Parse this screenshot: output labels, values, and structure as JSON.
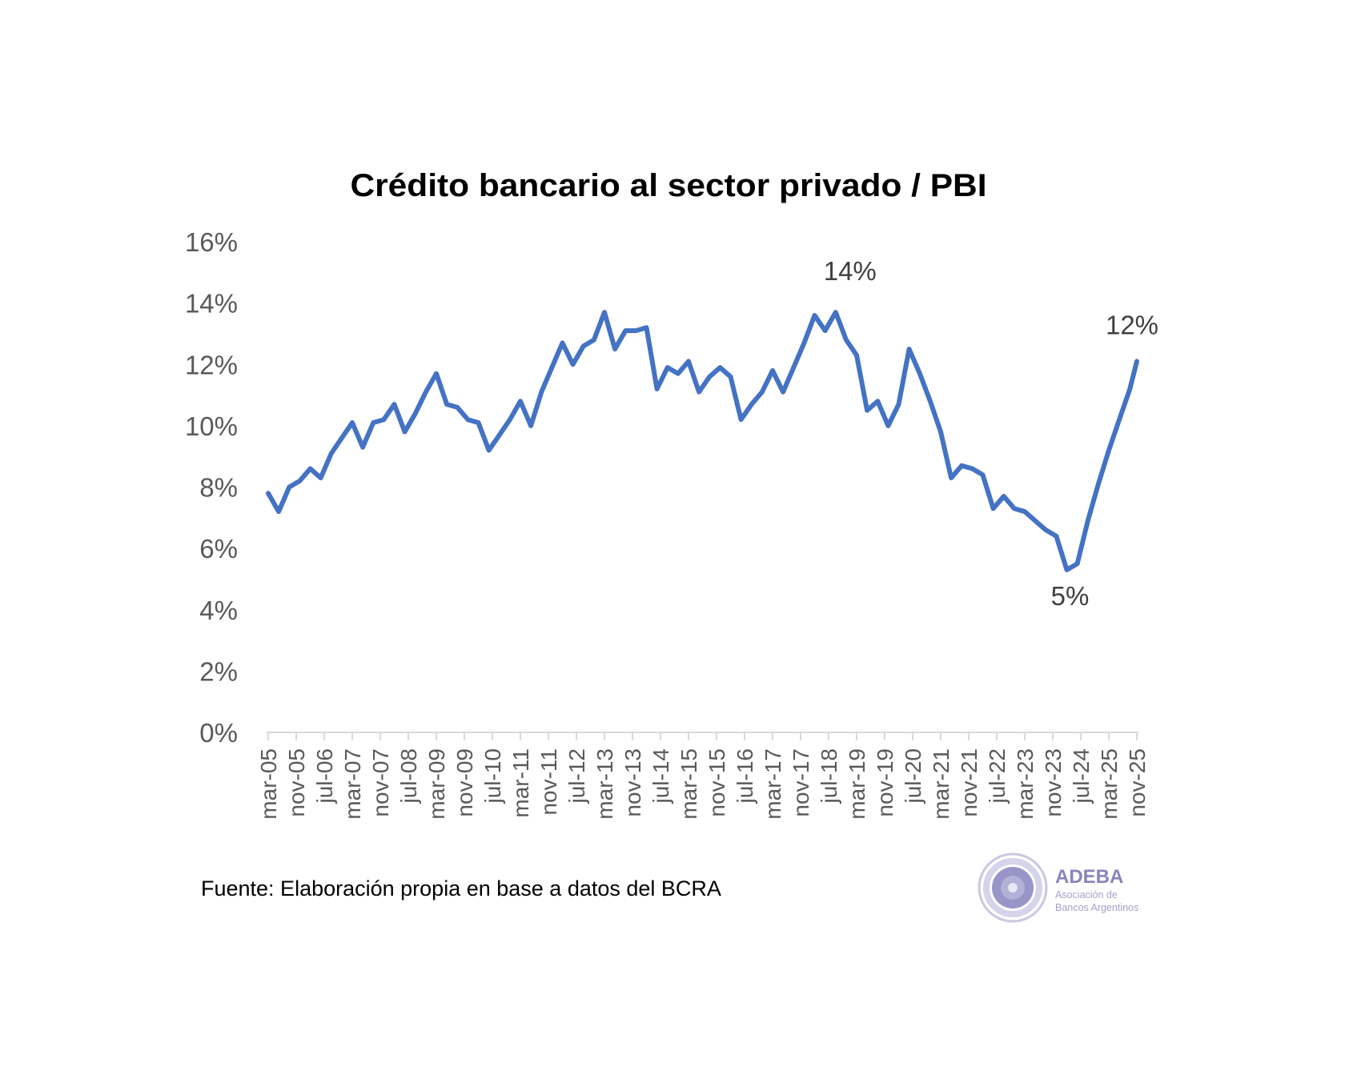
{
  "chart_data": {
    "type": "line",
    "title": "Crédito bancario al sector privado / PBI",
    "xlabel": "",
    "ylabel": "",
    "ylim": [
      0,
      16
    ],
    "y_ticks": [
      "0%",
      "2%",
      "4%",
      "6%",
      "8%",
      "10%",
      "12%",
      "14%",
      "16%"
    ],
    "x_tick_labels": [
      "mar-05",
      "nov-05",
      "jul-06",
      "mar-07",
      "nov-07",
      "jul-08",
      "mar-09",
      "nov-09",
      "jul-10",
      "mar-11",
      "nov-11",
      "jul-12",
      "mar-13",
      "nov-13",
      "jul-14",
      "mar-15",
      "nov-15",
      "jul-16",
      "mar-17",
      "nov-17",
      "jul-18",
      "mar-19",
      "nov-19",
      "jul-20",
      "mar-21",
      "nov-21",
      "jul-22",
      "mar-23",
      "nov-23",
      "jul-24",
      "mar-25",
      "nov-25"
    ],
    "x_range": [
      "2005-03",
      "2025-11"
    ],
    "grid": false,
    "legend": "none",
    "line_color": "#4472C4",
    "series": [
      {
        "x": [
          "2005-03",
          "2005-06",
          "2005-09",
          "2005-12",
          "2006-03",
          "2006-06",
          "2006-09",
          "2006-12",
          "2007-03",
          "2007-06",
          "2007-09",
          "2007-12",
          "2008-03",
          "2008-06",
          "2008-09",
          "2008-12",
          "2009-03",
          "2009-06",
          "2009-09",
          "2009-12",
          "2010-03",
          "2010-06",
          "2010-09",
          "2010-12",
          "2011-03",
          "2011-06",
          "2011-09",
          "2011-12",
          "2012-03",
          "2012-06",
          "2012-09",
          "2012-12",
          "2013-03",
          "2013-06",
          "2013-09",
          "2013-12",
          "2014-03",
          "2014-06",
          "2014-09",
          "2014-12",
          "2015-03",
          "2015-06",
          "2015-09",
          "2015-12",
          "2016-03",
          "2016-06",
          "2016-09",
          "2016-12",
          "2017-03",
          "2017-06",
          "2017-09",
          "2017-12",
          "2018-03",
          "2018-06",
          "2018-09",
          "2018-12",
          "2019-03",
          "2019-06",
          "2019-09",
          "2019-12",
          "2020-03",
          "2020-06",
          "2020-09",
          "2020-12",
          "2021-03",
          "2021-06",
          "2021-09",
          "2021-12",
          "2022-03",
          "2022-06",
          "2022-09",
          "2022-12",
          "2023-03",
          "2023-06",
          "2023-09",
          "2023-12",
          "2024-03",
          "2024-06",
          "2024-09",
          "2024-12",
          "2025-03",
          "2025-06",
          "2025-09",
          "2025-11"
        ],
        "y": [
          7.8,
          7.2,
          8.0,
          8.2,
          8.6,
          8.3,
          9.1,
          9.6,
          10.1,
          9.3,
          10.1,
          10.2,
          10.7,
          9.8,
          10.4,
          11.1,
          11.7,
          10.7,
          10.6,
          10.2,
          10.1,
          9.2,
          9.7,
          10.2,
          10.8,
          10.0,
          11.1,
          11.9,
          12.7,
          12.0,
          12.6,
          12.8,
          13.7,
          12.5,
          13.1,
          13.1,
          13.2,
          11.2,
          11.9,
          11.7,
          12.1,
          11.1,
          11.6,
          11.9,
          11.6,
          10.2,
          10.7,
          11.1,
          11.8,
          11.1,
          11.9,
          12.7,
          13.6,
          13.1,
          13.7,
          12.8,
          12.3,
          10.5,
          10.8,
          10.0,
          10.7,
          12.5,
          11.7,
          10.8,
          9.8,
          8.3,
          8.7,
          8.6,
          8.4,
          7.3,
          7.7,
          7.3,
          7.2,
          6.9,
          6.6,
          6.4,
          5.3,
          5.5,
          6.9,
          8.1,
          9.2,
          10.2,
          11.2,
          12.1
        ]
      }
    ],
    "annotations": [
      {
        "text": "14%",
        "x": "2018-09",
        "y": 13.7
      },
      {
        "text": "5%",
        "x": "2024-03",
        "y": 5.3
      },
      {
        "text": "12%",
        "x": "2025-11",
        "y": 12.1
      }
    ]
  },
  "source_note": "Fuente: Elaboración propia en base a datos del BCRA",
  "logo": {
    "name": "ADEBA",
    "subtitle_line1": "Asociación de",
    "subtitle_line2": "Bancos Argentinos",
    "seal_text": "ASOCIACIÓN DE BANCOS ARGENTINOS · ADEBA",
    "color": "#8785b8"
  }
}
